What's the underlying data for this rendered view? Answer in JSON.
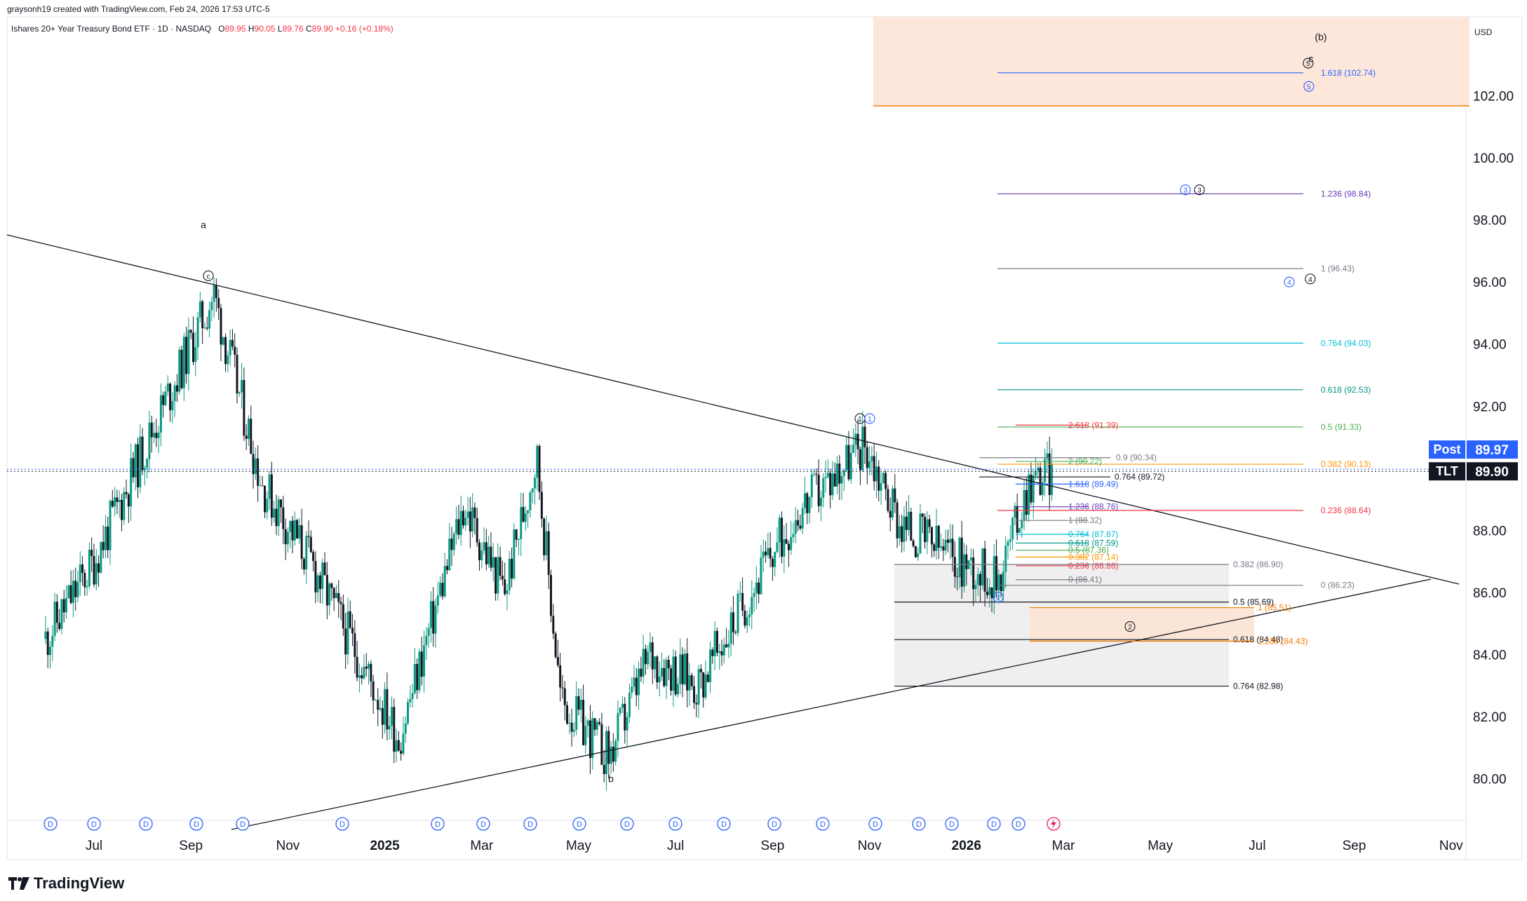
{
  "header": {
    "created": "graysonh19 created with TradingView.com, Feb 24, 2026 17:53 UTC-5",
    "symbol": "Ishares 20+ Year Treasury Bond ETF · 1D · NASDAQ",
    "o_label": "O",
    "o_value": "89.95",
    "h_label": "H",
    "h_value": "90.05",
    "l_label": "L",
    "l_value": "89.76",
    "c_label": "C",
    "c_value": "89.90",
    "change": "+0.16 (+0.18%)"
  },
  "brand": {
    "name": "TradingView",
    "icon": "tradingview-logo-icon"
  },
  "colors": {
    "up": "#089981",
    "down": "#131722",
    "post": "#2962ff",
    "tlt": "#131722",
    "zone_top": "#fbe3d3",
    "zone_lower": "#e8e8e8"
  },
  "chart_data": {
    "type": "candlestick",
    "currency": "USD",
    "y_ticks": [
      "80.00",
      "82.00",
      "84.00",
      "86.00",
      "88.00",
      "90.00",
      "92.00",
      "94.00",
      "96.00",
      "98.00",
      "100.00",
      "102.00"
    ],
    "ylim": [
      78.5,
      104.5
    ],
    "x_ticks": [
      {
        "label": "Jul"
      },
      {
        "label": "Sep"
      },
      {
        "label": "Nov"
      },
      {
        "label": "2025",
        "bold": true
      },
      {
        "label": "Mar"
      },
      {
        "label": "May"
      },
      {
        "label": "Jul"
      },
      {
        "label": "Sep"
      },
      {
        "label": "Nov"
      },
      {
        "label": "2026",
        "bold": true
      },
      {
        "label": "Mar"
      },
      {
        "label": "May"
      },
      {
        "label": "Jul"
      },
      {
        "label": "Sep"
      },
      {
        "label": "Nov"
      }
    ],
    "price_tags": [
      {
        "label": "Post",
        "value": "89.97",
        "y": 89.97
      },
      {
        "label": "TLT",
        "value": "89.90",
        "y": 89.9
      }
    ],
    "key_points": [
      {
        "date": "2024-06",
        "price": 84.5
      },
      {
        "date": "2024-07",
        "price": 87.0
      },
      {
        "date": "2024-08",
        "price": 90.5
      },
      {
        "date": "2024-09-15",
        "price": 95.6
      },
      {
        "date": "2024-10-15",
        "price": 89.5
      },
      {
        "date": "2024-11-15",
        "price": 87.0
      },
      {
        "date": "2025-01-10",
        "price": 81.3
      },
      {
        "date": "2025-02-20",
        "price": 88.8
      },
      {
        "date": "2025-03-15",
        "price": 86.0
      },
      {
        "date": "2025-04-05",
        "price": 90.4
      },
      {
        "date": "2025-04-20",
        "price": 82.5
      },
      {
        "date": "2025-05-20",
        "price": 80.7
      },
      {
        "date": "2025-06-15",
        "price": 84.0
      },
      {
        "date": "2025-07-15",
        "price": 83.0
      },
      {
        "date": "2025-08-15",
        "price": 85.8
      },
      {
        "date": "2025-09-15",
        "price": 88.5
      },
      {
        "date": "2025-10-28",
        "price": 90.8
      },
      {
        "date": "2025-11-20",
        "price": 88.2
      },
      {
        "date": "2025-12-20",
        "price": 87.2
      },
      {
        "date": "2026-01-20",
        "price": 86.4
      },
      {
        "date": "2026-02-10",
        "price": 89.6
      },
      {
        "date": "2026-02-24",
        "price": 89.9
      }
    ],
    "fib_labels": [
      {
        "text": "1.618 (102.74)",
        "y": 102.74,
        "color": "#2962ff"
      },
      {
        "text": "1.236 (98.84)",
        "y": 98.84,
        "color": "#673ab7"
      },
      {
        "text": "1 (96.43)",
        "y": 96.43,
        "color": "#787b86"
      },
      {
        "text": "0.764 (94.03)",
        "y": 94.03,
        "color": "#00bcd4"
      },
      {
        "text": "0.618 (92.53)",
        "y": 92.53,
        "color": "#009688"
      },
      {
        "text": "0.5 (91.33)",
        "y": 91.33,
        "color": "#4caf50"
      },
      {
        "text": "0.382 (90.13)",
        "y": 90.13,
        "color": "#ff9800"
      },
      {
        "text": "0.236 (88.64)",
        "y": 88.64,
        "color": "#f23645"
      },
      {
        "text": "0 (86.23)",
        "y": 86.23,
        "color": "#787b86"
      },
      {
        "text": "2.618 (91.39)",
        "y": 91.39,
        "color": "#f23645"
      },
      {
        "text": "2 (90.22)",
        "y": 90.22,
        "color": "#4caf50"
      },
      {
        "text": "1.618 (89.49)",
        "y": 89.49,
        "color": "#2962ff"
      },
      {
        "text": "1.236 (88.76)",
        "y": 88.76,
        "color": "#673ab7"
      },
      {
        "text": "1 (88.32)",
        "y": 88.32,
        "color": "#787b86"
      },
      {
        "text": "0.764 (87.87)",
        "y": 87.87,
        "color": "#00bcd4"
      },
      {
        "text": "0.618 (87.59)",
        "y": 87.59,
        "color": "#009688"
      },
      {
        "text": "0.5 (87.36)",
        "y": 87.36,
        "color": "#4caf50"
      },
      {
        "text": "0.382 (87.14)",
        "y": 87.14,
        "color": "#ff9800"
      },
      {
        "text": "0.236 (86.86)",
        "y": 86.86,
        "color": "#f23645"
      },
      {
        "text": "0 (86.41)",
        "y": 86.41,
        "color": "#787b86"
      },
      {
        "text": "0.9 (90.34)",
        "y": 90.34,
        "color": "#787b86"
      },
      {
        "text": "0.764 (89.72)",
        "y": 89.72,
        "color": "#131722"
      },
      {
        "text": "0.382 (86.90)",
        "y": 86.9,
        "color": "#787b86"
      },
      {
        "text": "0.5 (85.69)",
        "y": 85.69,
        "color": "#131722"
      },
      {
        "text": "1 (85.51)",
        "y": 85.51,
        "color": "#f57c00"
      },
      {
        "text": "0.618 (84.48)",
        "y": 84.48,
        "color": "#131722"
      },
      {
        "text": "1.236 (84.43)",
        "y": 84.43,
        "color": "#f57c00"
      },
      {
        "text": "0.764 (82.98)",
        "y": 82.98,
        "color": "#131722"
      }
    ],
    "wave_labels": [
      {
        "text": "(b)",
        "y": 103.9
      },
      {
        "text": "c",
        "y": 103.2
      },
      {
        "text": "a",
        "y": 97.85
      },
      {
        "text": "b",
        "y": 80.0
      }
    ],
    "circled_labels": [
      "c",
      "1",
      "1",
      "2",
      "3",
      "3",
      "4",
      "4",
      "5",
      "5",
      "2"
    ],
    "dividend_marker": "D",
    "event_marker": "lightning-icon"
  }
}
